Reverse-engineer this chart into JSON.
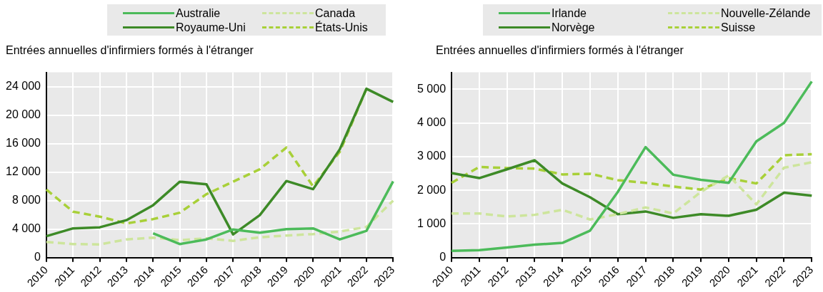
{
  "chart_data": [
    {
      "type": "line",
      "ylabel": "Entrées annuelles d'infirmiers formés à l'étranger",
      "categories": [
        "2010",
        "2011",
        "2012",
        "2013",
        "2014",
        "2015",
        "2016",
        "2017",
        "2018",
        "2019",
        "2020",
        "2021",
        "2022",
        "2023"
      ],
      "ylim": [
        0,
        26000
      ],
      "yticks": [
        {
          "value": 0,
          "label": "0"
        },
        {
          "value": 4000,
          "label": "4 000"
        },
        {
          "value": 8000,
          "label": "8 000"
        },
        {
          "value": 12000,
          "label": "12 000"
        },
        {
          "value": 16000,
          "label": "16 000"
        },
        {
          "value": 20000,
          "label": "20 000"
        },
        {
          "value": 24000,
          "label": "24 000"
        }
      ],
      "grid": true,
      "legend": "top",
      "marker": "none",
      "series": [
        {
          "name": "Australie",
          "color": "#4cbb5a",
          "line_style": "solid",
          "values": [
            null,
            null,
            null,
            null,
            3400,
            1900,
            2550,
            3950,
            3500,
            4000,
            4100,
            2550,
            3750,
            10700
          ]
        },
        {
          "name": "Canada",
          "color": "#cde59c",
          "line_style": "dashed",
          "values": [
            2200,
            1900,
            1850,
            2550,
            2800,
            2450,
            2700,
            2350,
            2850,
            3100,
            3300,
            3650,
            4300,
            8000
          ]
        },
        {
          "name": "Royaume-Uni",
          "color": "#3d8a27",
          "line_style": "solid",
          "values": [
            3000,
            4100,
            4250,
            5250,
            7350,
            10650,
            10300,
            3250,
            5950,
            10750,
            9600,
            15200,
            23700,
            21850
          ]
        },
        {
          "name": "États-Unis",
          "color": "#a8d038",
          "line_style": "dashed",
          "values": [
            9550,
            6450,
            5750,
            4800,
            5400,
            6300,
            8900,
            10650,
            12400,
            15450,
            10000,
            14850,
            23700,
            null
          ]
        }
      ]
    },
    {
      "type": "line",
      "ylabel": "Entrées annuelles d'infirmiers formés à l'étranger",
      "categories": [
        "2010",
        "2011",
        "2012",
        "2013",
        "2014",
        "2015",
        "2016",
        "2017",
        "2018",
        "2019",
        "2020",
        "2021",
        "2022",
        "2023"
      ],
      "ylim": [
        0,
        5500
      ],
      "yticks": [
        {
          "value": 0,
          "label": "0"
        },
        {
          "value": 1000,
          "label": "1 000"
        },
        {
          "value": 2000,
          "label": "2 000"
        },
        {
          "value": 3000,
          "label": "3 000"
        },
        {
          "value": 4000,
          "label": "4 000"
        },
        {
          "value": 5000,
          "label": "5 000"
        }
      ],
      "grid": true,
      "legend": "top",
      "marker": "none",
      "series": [
        {
          "name": "Irlande",
          "color": "#4cbb5a",
          "line_style": "solid",
          "values": [
            200,
            220,
            300,
            385,
            435,
            800,
            1950,
            3280,
            2460,
            2310,
            2220,
            3450,
            4000,
            5230
          ]
        },
        {
          "name": "Nouvelle-Zélande",
          "color": "#cde59c",
          "line_style": "dashed",
          "values": [
            1310,
            1310,
            1220,
            1270,
            1420,
            1130,
            1290,
            1490,
            1310,
            1950,
            2440,
            1580,
            2670,
            2830
          ]
        },
        {
          "name": "Norvège",
          "color": "#3d8a27",
          "line_style": "solid",
          "values": [
            2510,
            2360,
            2620,
            2890,
            2200,
            1790,
            1290,
            1370,
            1180,
            1290,
            1240,
            1420,
            1930,
            1840
          ]
        },
        {
          "name": "Suisse",
          "color": "#a8d038",
          "line_style": "dashed",
          "values": [
            2220,
            2690,
            2660,
            2640,
            2470,
            2490,
            2300,
            2220,
            2110,
            2020,
            2360,
            2200,
            3040,
            3070
          ]
        }
      ]
    }
  ]
}
